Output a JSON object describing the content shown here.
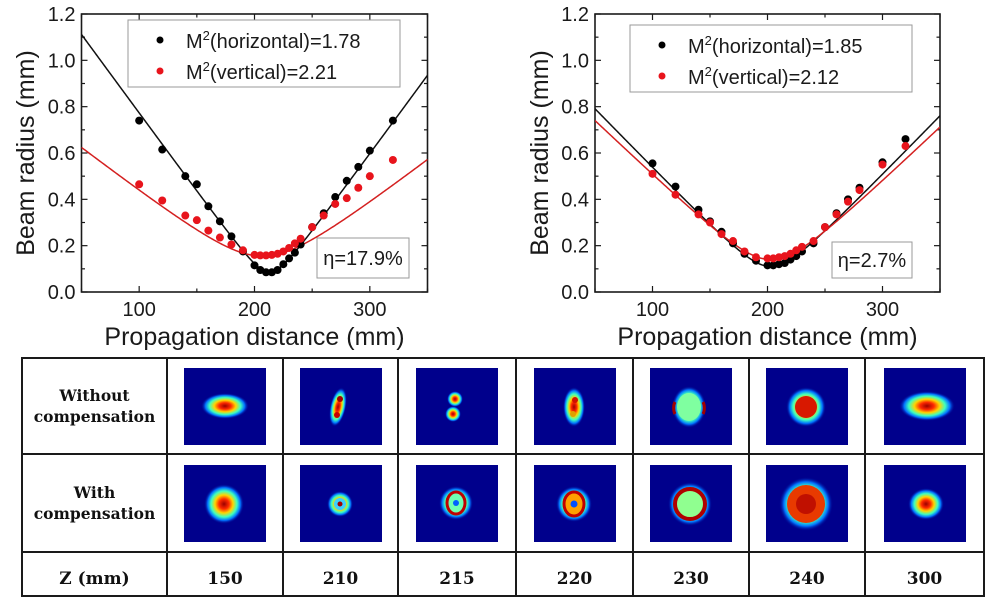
{
  "chart_data": [
    {
      "type": "scatter",
      "title": "",
      "xlabel": "Propagation distance (mm)",
      "ylabel": "Beam radius (mm)",
      "xlim": [
        50,
        350
      ],
      "ylim": [
        0.0,
        1.2
      ],
      "xticks": [
        100,
        200,
        300
      ],
      "yticks": [
        0.0,
        0.2,
        0.4,
        0.6,
        0.8,
        1.0,
        1.2
      ],
      "ytick_labels": [
        "0.0",
        "0.2",
        "0.4",
        "0.6",
        "0.8",
        "1.0",
        "1.2"
      ],
      "grid": false,
      "legend_position": "top-right",
      "annotation": "η=17.9%",
      "series": [
        {
          "name": "M²(horizontal)=1.78",
          "legend_main": "M",
          "legend_sup": "2",
          "legend_rest": "(horizontal)=1.78",
          "color": "#000000",
          "fit": {
            "w0": 0.085,
            "z0": 213,
            "slope": 0.0068
          },
          "x": [
            100,
            120,
            140,
            150,
            160,
            170,
            180,
            190,
            200,
            205,
            210,
            215,
            220,
            225,
            230,
            235,
            240,
            250,
            260,
            270,
            280,
            290,
            300,
            320
          ],
          "y": [
            0.74,
            0.615,
            0.5,
            0.465,
            0.37,
            0.305,
            0.24,
            0.175,
            0.115,
            0.095,
            0.085,
            0.085,
            0.095,
            0.12,
            0.145,
            0.17,
            0.205,
            0.28,
            0.34,
            0.41,
            0.48,
            0.54,
            0.61,
            0.74
          ]
        },
        {
          "name": "M²(vertical)=2.21",
          "legend_main": "M",
          "legend_sup": "2",
          "legend_rest": "(vertical)=2.21",
          "color": "#e8141c",
          "fit": {
            "w0": 0.155,
            "z0": 207,
            "slope": 0.00385
          },
          "x": [
            100,
            120,
            140,
            150,
            160,
            170,
            180,
            190,
            200,
            205,
            210,
            215,
            220,
            225,
            230,
            235,
            240,
            250,
            260,
            270,
            280,
            290,
            300,
            320
          ],
          "y": [
            0.465,
            0.395,
            0.33,
            0.31,
            0.265,
            0.235,
            0.205,
            0.18,
            0.16,
            0.158,
            0.158,
            0.16,
            0.165,
            0.175,
            0.19,
            0.21,
            0.23,
            0.28,
            0.33,
            0.38,
            0.405,
            0.45,
            0.5,
            0.57
          ]
        }
      ]
    },
    {
      "type": "scatter",
      "title": "",
      "xlabel": "Propagation distance (mm)",
      "ylabel": "Beam radius (mm)",
      "xlim": [
        50,
        350
      ],
      "ylim": [
        0.0,
        1.2
      ],
      "xticks": [
        100,
        200,
        300
      ],
      "yticks": [
        0.0,
        0.2,
        0.4,
        0.6,
        0.8,
        1.0,
        1.2
      ],
      "ytick_labels": [
        "0.0",
        "0.2",
        "0.4",
        "0.6",
        "0.8",
        "1.0",
        "1.2"
      ],
      "grid": false,
      "legend_position": "top-right",
      "annotation": "η=2.7%",
      "series": [
        {
          "name": "M²(horizontal)=1.85",
          "legend_main": "M",
          "legend_sup": "2",
          "legend_rest": "(horizontal)=1.85",
          "color": "#000000",
          "fit": {
            "w0": 0.11,
            "z0": 203,
            "slope": 0.00512
          },
          "x": [
            100,
            120,
            140,
            150,
            160,
            170,
            180,
            190,
            200,
            205,
            210,
            215,
            220,
            225,
            230,
            240,
            250,
            260,
            270,
            280,
            300,
            320
          ],
          "y": [
            0.555,
            0.455,
            0.355,
            0.305,
            0.26,
            0.21,
            0.165,
            0.135,
            0.115,
            0.115,
            0.12,
            0.125,
            0.14,
            0.155,
            0.175,
            0.21,
            0.28,
            0.34,
            0.4,
            0.45,
            0.56,
            0.66
          ]
        },
        {
          "name": "M²(vertical)=2.12",
          "legend_main": "M",
          "legend_sup": "2",
          "legend_rest": "(vertical)=2.12",
          "color": "#e8141c",
          "fit": {
            "w0": 0.14,
            "z0": 203,
            "slope": 0.00475
          },
          "x": [
            100,
            120,
            140,
            150,
            160,
            170,
            180,
            190,
            200,
            205,
            210,
            215,
            220,
            225,
            230,
            240,
            250,
            260,
            270,
            280,
            300,
            320
          ],
          "y": [
            0.51,
            0.42,
            0.335,
            0.3,
            0.25,
            0.22,
            0.175,
            0.15,
            0.145,
            0.145,
            0.15,
            0.155,
            0.165,
            0.18,
            0.195,
            0.22,
            0.28,
            0.335,
            0.39,
            0.44,
            0.55,
            0.63
          ]
        }
      ]
    }
  ],
  "table": {
    "row_labels": [
      {
        "line1": "Without",
        "line2": "compensation"
      },
      {
        "line1": "With",
        "line2": "compensation"
      }
    ],
    "z_label": "Z (mm)",
    "z_values": [
      "150",
      "210",
      "215",
      "220",
      "230",
      "240",
      "300"
    ],
    "image_background": "#00008c",
    "beam_profiles": {
      "without": [
        "ellipse-horizontal",
        "two-lobe-vertical",
        "two-spot-vertical",
        "split-vertical",
        "ring-fragmented",
        "cross-shaped",
        "ellipse-horizontal"
      ],
      "with": [
        "round-spot",
        "small-ring",
        "ring",
        "ring",
        "large-ring",
        "large-disc",
        "small-spot"
      ]
    }
  }
}
